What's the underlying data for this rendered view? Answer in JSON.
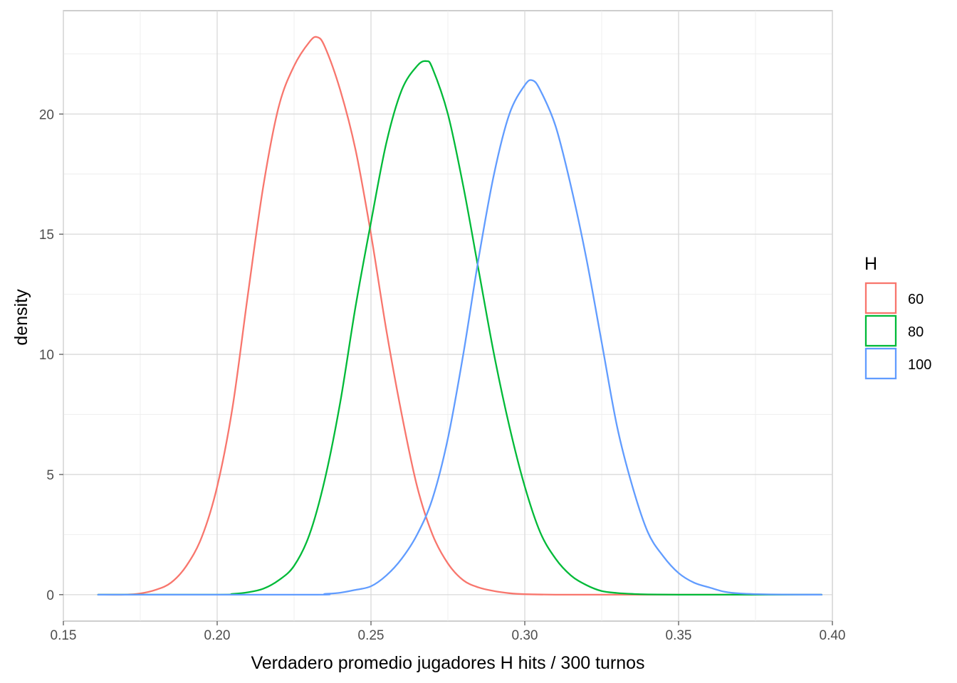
{
  "chart_data": {
    "type": "line",
    "title": "",
    "xlabel": "Verdadero promedio jugadores  H hits / 300 turnos",
    "ylabel": "density",
    "xlim": [
      0.15,
      0.4
    ],
    "ylim": [
      -1.1,
      24.3
    ],
    "x_ticks": [
      0.15,
      0.2,
      0.25,
      0.3,
      0.35,
      0.4
    ],
    "x_tick_labels": [
      "0.15",
      "0.20",
      "0.25",
      "0.30",
      "0.35",
      "0.40"
    ],
    "y_ticks": [
      0,
      5,
      10,
      15,
      20
    ],
    "y_tick_labels": [
      "0",
      "5",
      "10",
      "15",
      "20"
    ],
    "grid": true,
    "legend": {
      "title": "H",
      "position": "right"
    },
    "series": [
      {
        "name": "60",
        "color": "#F8766D",
        "x": [
          0.1613,
          0.17,
          0.175,
          0.18,
          0.185,
          0.19,
          0.195,
          0.2,
          0.205,
          0.21,
          0.215,
          0.22,
          0.225,
          0.23,
          0.2325,
          0.235,
          0.24,
          0.245,
          0.25,
          0.255,
          0.26,
          0.265,
          0.27,
          0.275,
          0.28,
          0.285,
          0.29,
          0.295,
          0.3,
          0.31,
          0.32,
          0.33,
          0.34,
          0.35,
          0.36,
          0.37,
          0.3965
        ],
        "y": [
          0.0,
          0.0,
          0.05,
          0.2,
          0.5,
          1.2,
          2.4,
          4.5,
          7.8,
          12.5,
          17.0,
          20.3,
          22.0,
          23.0,
          23.2,
          22.8,
          21.0,
          18.5,
          15.0,
          11.0,
          7.5,
          4.5,
          2.5,
          1.3,
          0.6,
          0.3,
          0.15,
          0.06,
          0.02,
          0.0,
          0.0,
          0.0,
          0.0,
          0.0,
          0.0,
          0.0,
          0.0
        ]
      },
      {
        "name": "80",
        "color": "#00BA38",
        "x": [
          0.1613,
          0.2,
          0.205,
          0.21,
          0.215,
          0.22,
          0.225,
          0.23,
          0.235,
          0.24,
          0.245,
          0.25,
          0.255,
          0.26,
          0.265,
          0.268,
          0.27,
          0.275,
          0.28,
          0.285,
          0.29,
          0.295,
          0.3,
          0.305,
          0.31,
          0.315,
          0.32,
          0.325,
          0.33,
          0.335,
          0.34,
          0.35,
          0.36,
          0.37,
          0.3965
        ],
        "y": [
          0.0,
          0.0,
          0.03,
          0.1,
          0.25,
          0.6,
          1.2,
          2.5,
          4.8,
          8.0,
          12.0,
          15.5,
          18.8,
          21.0,
          22.0,
          22.2,
          21.9,
          20.0,
          17.0,
          13.5,
          10.0,
          7.0,
          4.5,
          2.6,
          1.5,
          0.8,
          0.4,
          0.15,
          0.07,
          0.03,
          0.01,
          0.0,
          0.0,
          0.0,
          0.0
        ]
      },
      {
        "name": "100",
        "color": "#619CFF",
        "x": [
          0.1613,
          0.23,
          0.235,
          0.24,
          0.245,
          0.25,
          0.255,
          0.26,
          0.265,
          0.27,
          0.275,
          0.28,
          0.285,
          0.29,
          0.295,
          0.3,
          0.3025,
          0.305,
          0.31,
          0.315,
          0.32,
          0.325,
          0.33,
          0.335,
          0.34,
          0.345,
          0.35,
          0.355,
          0.36,
          0.365,
          0.37,
          0.38,
          0.3965
        ],
        "y": [
          0.0,
          0.0,
          0.03,
          0.08,
          0.2,
          0.35,
          0.8,
          1.5,
          2.5,
          4.0,
          6.5,
          10.0,
          14.0,
          17.5,
          20.0,
          21.2,
          21.4,
          21.0,
          19.5,
          17.0,
          14.0,
          10.5,
          7.0,
          4.5,
          2.6,
          1.6,
          0.9,
          0.5,
          0.3,
          0.12,
          0.05,
          0.01,
          0.0
        ]
      }
    ]
  }
}
